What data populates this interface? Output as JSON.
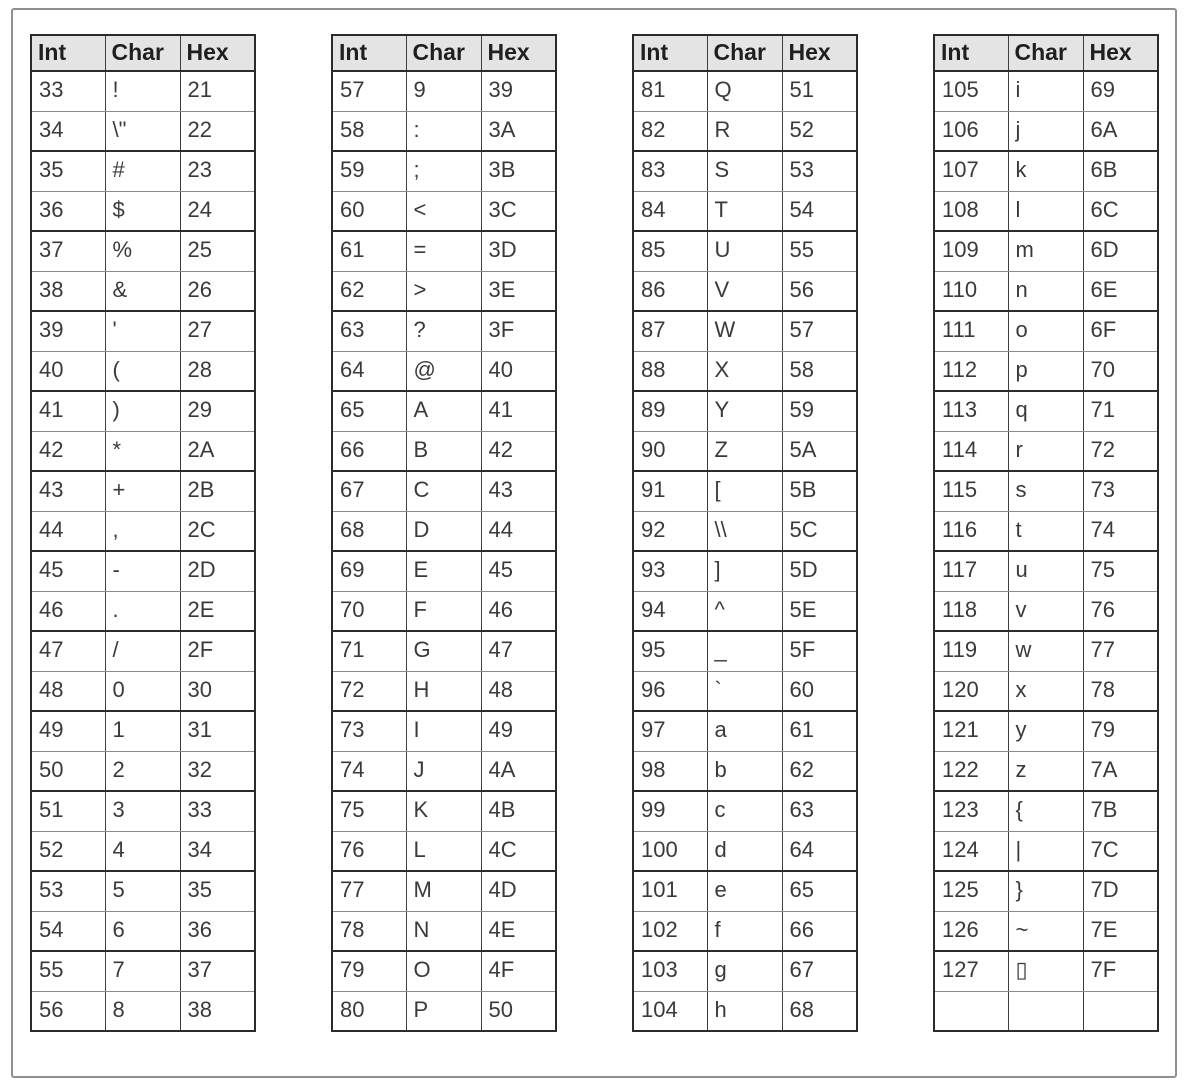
{
  "page": {
    "background": "#ffffff",
    "frame_border_color": "#8f9091"
  },
  "colors": {
    "header_bg": "#e4e4e4",
    "border_dark": "#2b2b2b",
    "border_light": "#8c8c8c",
    "header_text": "#1f1f1f",
    "cell_text": "#3a3a3a"
  },
  "tables": [
    {
      "name": "ascii-33-56",
      "headers": [
        "Int",
        "Char",
        "Hex"
      ],
      "rows": [
        [
          "33",
          "!",
          "21"
        ],
        [
          "34",
          "\\\"",
          "22"
        ],
        [
          "35",
          "#",
          "23"
        ],
        [
          "36",
          "$",
          "24"
        ],
        [
          "37",
          "%",
          "25"
        ],
        [
          "38",
          "&",
          "26"
        ],
        [
          "39",
          "'",
          "27"
        ],
        [
          "40",
          "(",
          "28"
        ],
        [
          "41",
          ")",
          "29"
        ],
        [
          "42",
          "*",
          "2A"
        ],
        [
          "43",
          "+",
          "2B"
        ],
        [
          "44",
          ",",
          "2C"
        ],
        [
          "45",
          "-",
          "2D"
        ],
        [
          "46",
          ".",
          "2E"
        ],
        [
          "47",
          "/",
          "2F"
        ],
        [
          "48",
          "0",
          "30"
        ],
        [
          "49",
          "1",
          "31"
        ],
        [
          "50",
          "2",
          "32"
        ],
        [
          "51",
          "3",
          "33"
        ],
        [
          "52",
          "4",
          "34"
        ],
        [
          "53",
          "5",
          "35"
        ],
        [
          "54",
          "6",
          "36"
        ],
        [
          "55",
          "7",
          "37"
        ],
        [
          "56",
          "8",
          "38"
        ]
      ]
    },
    {
      "name": "ascii-57-80",
      "headers": [
        "Int",
        "Char",
        "Hex"
      ],
      "rows": [
        [
          "57",
          "9",
          "39"
        ],
        [
          "58",
          ":",
          "3A"
        ],
        [
          "59",
          ";",
          "3B"
        ],
        [
          "60",
          "<",
          "3C"
        ],
        [
          "61",
          "=",
          "3D"
        ],
        [
          "62",
          ">",
          "3E"
        ],
        [
          "63",
          "?",
          "3F"
        ],
        [
          "64",
          "@",
          "40"
        ],
        [
          "65",
          "A",
          "41"
        ],
        [
          "66",
          "B",
          "42"
        ],
        [
          "67",
          "C",
          "43"
        ],
        [
          "68",
          "D",
          "44"
        ],
        [
          "69",
          "E",
          "45"
        ],
        [
          "70",
          "F",
          "46"
        ],
        [
          "71",
          "G",
          "47"
        ],
        [
          "72",
          "H",
          "48"
        ],
        [
          "73",
          "I",
          "49"
        ],
        [
          "74",
          "J",
          "4A"
        ],
        [
          "75",
          "K",
          "4B"
        ],
        [
          "76",
          "L",
          "4C"
        ],
        [
          "77",
          "M",
          "4D"
        ],
        [
          "78",
          "N",
          "4E"
        ],
        [
          "79",
          "O",
          "4F"
        ],
        [
          "80",
          "P",
          "50"
        ]
      ]
    },
    {
      "name": "ascii-81-104",
      "headers": [
        "Int",
        "Char",
        "Hex"
      ],
      "rows": [
        [
          "81",
          "Q",
          "51"
        ],
        [
          "82",
          "R",
          "52"
        ],
        [
          "83",
          "S",
          "53"
        ],
        [
          "84",
          "T",
          "54"
        ],
        [
          "85",
          "U",
          "55"
        ],
        [
          "86",
          "V",
          "56"
        ],
        [
          "87",
          "W",
          "57"
        ],
        [
          "88",
          "X",
          "58"
        ],
        [
          "89",
          "Y",
          "59"
        ],
        [
          "90",
          "Z",
          "5A"
        ],
        [
          "91",
          "[",
          "5B"
        ],
        [
          "92",
          "\\\\",
          "5C"
        ],
        [
          "93",
          "]",
          "5D"
        ],
        [
          "94",
          "^",
          "5E"
        ],
        [
          "95",
          "_",
          "5F"
        ],
        [
          "96",
          "`",
          "60"
        ],
        [
          "97",
          "a",
          "61"
        ],
        [
          "98",
          "b",
          "62"
        ],
        [
          "99",
          "c",
          "63"
        ],
        [
          "100",
          "d",
          "64"
        ],
        [
          "101",
          "e",
          "65"
        ],
        [
          "102",
          "f",
          "66"
        ],
        [
          "103",
          "g",
          "67"
        ],
        [
          "104",
          "h",
          "68"
        ]
      ]
    },
    {
      "name": "ascii-105-127",
      "headers": [
        "Int",
        "Char",
        "Hex"
      ],
      "rows": [
        [
          "105",
          "i",
          "69"
        ],
        [
          "106",
          "j",
          "6A"
        ],
        [
          "107",
          "k",
          "6B"
        ],
        [
          "108",
          "l",
          "6C"
        ],
        [
          "109",
          "m",
          "6D"
        ],
        [
          "110",
          "n",
          "6E"
        ],
        [
          "111",
          "o",
          "6F"
        ],
        [
          "112",
          "p",
          "70"
        ],
        [
          "113",
          "q",
          "71"
        ],
        [
          "114",
          "r",
          "72"
        ],
        [
          "115",
          "s",
          "73"
        ],
        [
          "116",
          "t",
          "74"
        ],
        [
          "117",
          "u",
          "75"
        ],
        [
          "118",
          "v",
          "76"
        ],
        [
          "119",
          "w",
          "77"
        ],
        [
          "120",
          "x",
          "78"
        ],
        [
          "121",
          "y",
          "79"
        ],
        [
          "122",
          "z",
          "7A"
        ],
        [
          "123",
          "{",
          "7B"
        ],
        [
          "124",
          "|",
          "7C"
        ],
        [
          "125",
          "}",
          "7D"
        ],
        [
          "126",
          "~",
          "7E"
        ],
        [
          "127",
          "▯",
          "7F"
        ],
        [
          "",
          "",
          ""
        ]
      ]
    }
  ]
}
